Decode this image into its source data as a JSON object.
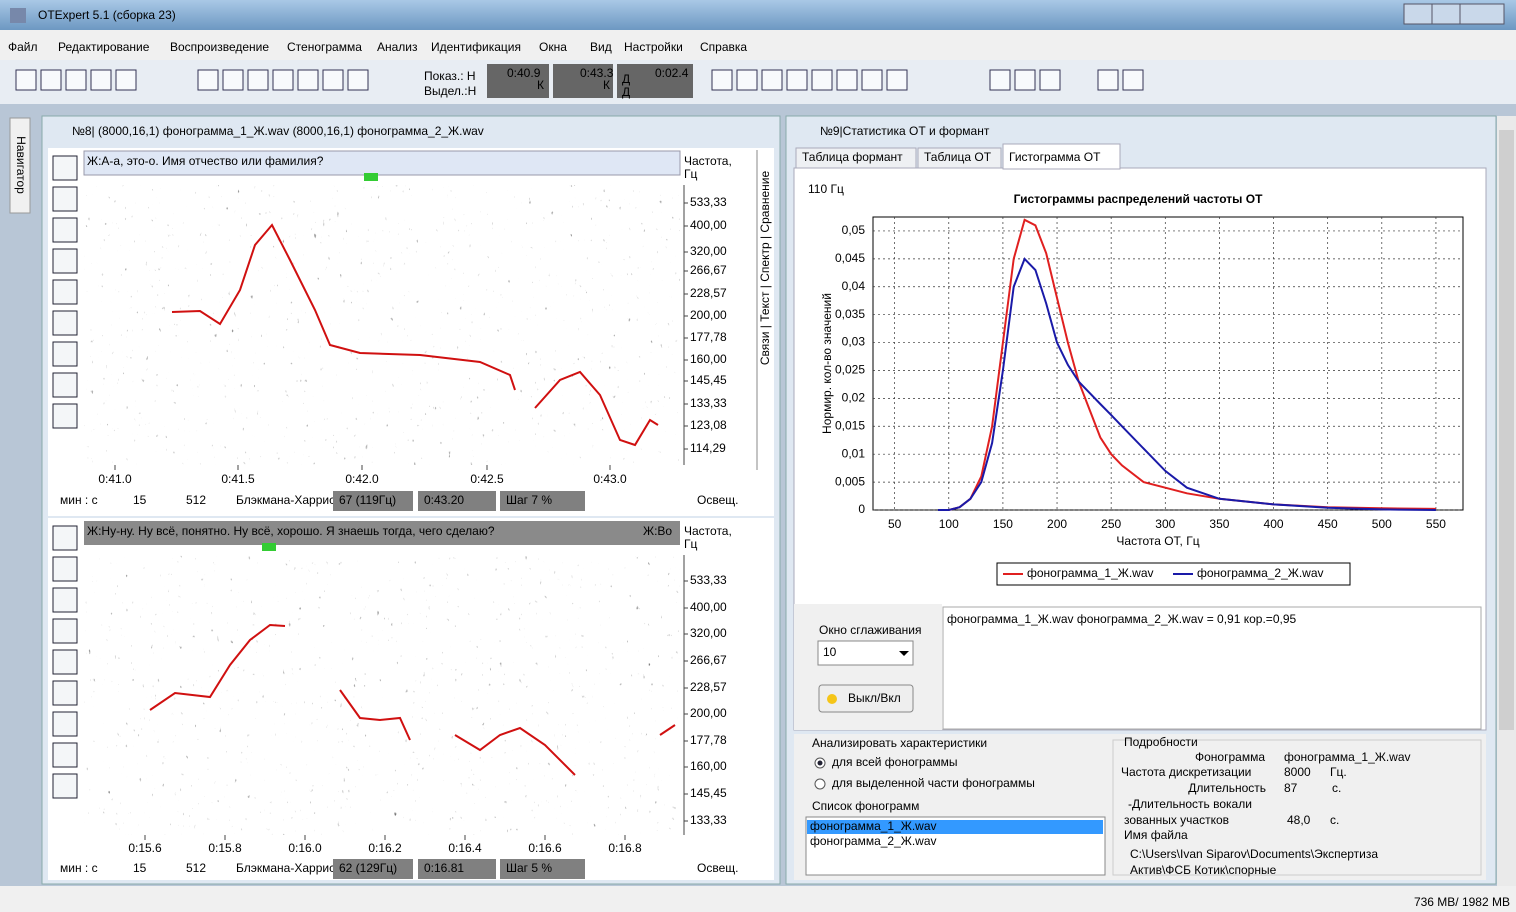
{
  "window_title": "OTExpert 5.1  (сборка 23)",
  "menu": [
    "Файл",
    "Редактирование",
    "Воспроизведение",
    "Стенограмма",
    "Анализ",
    "Идентификация",
    "Окна",
    "Вид",
    "Настройки",
    "Справка"
  ],
  "toolbar_fields": [
    "Показ.: Н",
    "Выдел.:Н",
    "0:40.9",
    "К",
    "0:43.3",
    "К",
    "Д",
    "0:02.4",
    "Д"
  ],
  "navigator": "Навигатор",
  "left_window": {
    "title": "№8| (8000,16,1)  фонограмма_1_Ж.wav   (8000,16,1)  фонограмма_2_Ж.wav",
    "side_tabs": "Связи | Текст | Спектр | Сравнение",
    "panels": [
      {
        "transcript": [
          "Ж:А-а, это-о. Имя отчество или фамилия?"
        ],
        "freq_header": [
          "Частота,",
          "Гц"
        ],
        "freq_labels": [
          "533,33",
          "400,00",
          "320,00",
          "266,67",
          "228,57",
          "200,00",
          "177,78",
          "160,00",
          "145,45",
          "133,33",
          "123,08",
          "114,29"
        ],
        "time_labels": [
          "0:41.0",
          "0:41.5",
          "0:42.0",
          "0:42.5",
          "0:43.0"
        ],
        "status": [
          "мин : с",
          "15",
          "512",
          "Блэкмана-Харриса",
          "67 (119Гц)",
          "0:43.20",
          "Шаг 7 %",
          "Освещ."
        ]
      },
      {
        "transcript": [
          "Ж:Ну-ну. Ну всё, понятно. Ну всё, хорошо. Я знаешь тогда, чего сделаю?",
          "Ж:Во"
        ],
        "freq_header": [
          "Частота,",
          "Гц"
        ],
        "freq_labels": [
          "533,33",
          "400,00",
          "320,00",
          "266,67",
          "228,57",
          "200,00",
          "177,78",
          "160,00",
          "145,45",
          "133,33"
        ],
        "time_labels": [
          "0:15.6",
          "0:15.8",
          "0:16.0",
          "0:16.2",
          "0:16.4",
          "0:16.6",
          "0:16.8"
        ],
        "status": [
          "мин : с",
          "15",
          "512",
          "Блэкмана-Харриса",
          "62 (129Гц)",
          "0:16.81",
          "Шаг 5 %",
          "Освещ."
        ]
      }
    ]
  },
  "right_window": {
    "title": "№9|Статистика ОТ и формант",
    "tabs": [
      "Таблица формант",
      "Таблица ОТ",
      "Гистограмма ОТ"
    ],
    "corner_label": "110 Гц",
    "smoothing_label": "Окно сглаживания",
    "smoothing_value": "10",
    "button": "Выкл/Вкл",
    "result": "фонограмма_1_Ж.wav  фонограмма_2_Ж.wav = 0,91 кор.=0,95",
    "analyze": {
      "title": "Анализировать характеристики",
      "options": [
        "для всей фонограммы",
        "для выделенной части фонограммы"
      ]
    },
    "list": {
      "title": "Список фонограмм",
      "items": [
        "фонограмма_1_Ж.wav",
        "фонограмма_2_Ж.wav"
      ]
    },
    "details": {
      "title": "Подробности",
      "items": [
        "Фонограмма",
        "фонограмма_1_Ж.wav",
        "Частота дискретизации",
        "8000",
        "Гц.",
        "Длительность",
        "87",
        "с.",
        "-Длительность вокали",
        "зованных участков",
        "48,0",
        "с.",
        "Имя  файла",
        "C:\\Users\\Ivan Siparov\\Documents\\Экспертиза",
        "Актив\\ФСБ Котик\\спорные"
      ]
    }
  },
  "memory": "736 MB/ 1982 MB",
  "chart_data": {
    "type": "line",
    "title": "Гистограммы распределений частоты ОТ",
    "x_label": "Частота ОТ, Гц",
    "y_label": "Нормир. кол-во значений",
    "x": [
      90,
      100,
      110,
      120,
      130,
      140,
      150,
      160,
      170,
      180,
      190,
      200,
      210,
      220,
      230,
      240,
      250,
      260,
      280,
      300,
      320,
      350,
      400,
      450,
      500,
      550
    ],
    "series": [
      {
        "name": "фонограмма_1_Ж.wav",
        "color": "#e02020",
        "values": [
          0,
          0,
          0.0005,
          0.002,
          0.006,
          0.015,
          0.03,
          0.045,
          0.052,
          0.051,
          0.046,
          0.038,
          0.03,
          0.023,
          0.018,
          0.013,
          0.01,
          0.008,
          0.005,
          0.004,
          0.003,
          0.002,
          0.001,
          0.0005,
          0.0003,
          0.0002
        ]
      },
      {
        "name": "фонограмма_2_Ж.wav",
        "color": "#1a1aa8",
        "values": [
          0,
          0,
          0.0005,
          0.002,
          0.005,
          0.012,
          0.025,
          0.04,
          0.045,
          0.043,
          0.037,
          0.03,
          0.026,
          0.023,
          0.021,
          0.019,
          0.017,
          0.015,
          0.011,
          0.007,
          0.004,
          0.002,
          0.001,
          0.0004,
          0.0001,
          0
        ]
      }
    ],
    "xlim": [
      30,
      575
    ],
    "ylim": [
      0,
      0.0525
    ],
    "xticks": [
      50,
      100,
      150,
      200,
      250,
      300,
      350,
      400,
      450,
      500,
      550
    ],
    "yticks": [
      0,
      {
        "value": 0.005,
        "label": "0,005"
      },
      {
        "value": 0.01,
        "label": "0,01"
      },
      {
        "value": 0.015,
        "label": "0,015"
      },
      {
        "value": 0.02,
        "label": "0,02"
      },
      {
        "value": 0.025,
        "label": "0,025"
      },
      {
        "value": 0.03,
        "label": "0,03"
      },
      {
        "value": 0.035,
        "label": "0,035"
      },
      {
        "value": 0.04,
        "label": "0,04"
      },
      {
        "value": 0.045,
        "label": "0,045"
      },
      {
        "value": 0.05,
        "label": "0,05"
      }
    ],
    "grid": true,
    "legend": "bottom"
  }
}
